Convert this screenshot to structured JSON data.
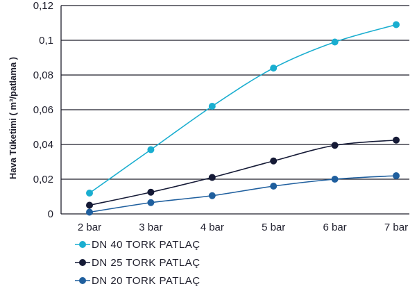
{
  "chart_data": {
    "type": "line",
    "title": "",
    "xlabel": "",
    "ylabel": "Hava Tüketimi ( m³/patlama )",
    "categories": [
      "2 bar",
      "3 bar",
      "4 bar",
      "5 bar",
      "6 bar",
      "7 bar"
    ],
    "ylim": [
      0,
      0.12
    ],
    "yticks": [
      "0",
      "0,02",
      "0,04",
      "0,06",
      "0,08",
      "0,1",
      "0,12"
    ],
    "grid": "horizontal",
    "legend_position": "bottom-left",
    "series": [
      {
        "name": "DN 40 TORK PATLAÇ",
        "color": "#1aaed0",
        "values": [
          0.012,
          0.037,
          0.062,
          0.084,
          0.099,
          0.109
        ]
      },
      {
        "name": "DN 25 TORK PATLAÇ",
        "color": "#151a36",
        "values": [
          0.005,
          0.0125,
          0.021,
          0.0305,
          0.0395,
          0.0425
        ]
      },
      {
        "name": "DN 20 TORK PATLAÇ",
        "color": "#1f5f9e",
        "values": [
          0.001,
          0.0065,
          0.0105,
          0.016,
          0.02,
          0.022
        ]
      }
    ]
  }
}
